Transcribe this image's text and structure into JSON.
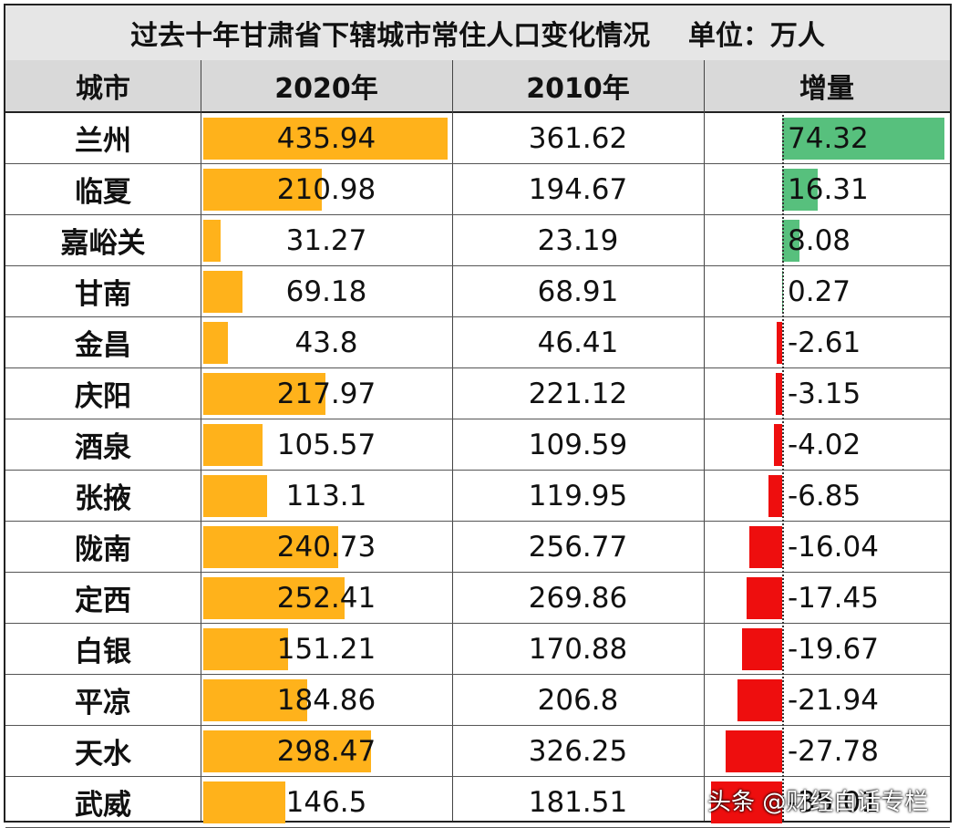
{
  "title": "过去十年甘肃省下辖城市常住人口变化情况    单位：万人",
  "chart_data": {
    "type": "table",
    "columns": [
      "城市",
      "2020年",
      "2010年",
      "增量"
    ],
    "rows": [
      {
        "city": "兰州",
        "y2020": "435.94",
        "y2010": "361.62",
        "inc": "74.32"
      },
      {
        "city": "临夏",
        "y2020": "210.98",
        "y2010": "194.67",
        "inc": "16.31"
      },
      {
        "city": "嘉峪关",
        "y2020": "31.27",
        "y2010": "23.19",
        "inc": "8.08"
      },
      {
        "city": "甘南",
        "y2020": "69.18",
        "y2010": "68.91",
        "inc": "0.27"
      },
      {
        "city": "金昌",
        "y2020": "43.8",
        "y2010": "46.41",
        "inc": "-2.61"
      },
      {
        "city": "庆阳",
        "y2020": "217.97",
        "y2010": "221.12",
        "inc": "-3.15"
      },
      {
        "city": "酒泉",
        "y2020": "105.57",
        "y2010": "109.59",
        "inc": "-4.02"
      },
      {
        "city": "张掖",
        "y2020": "113.1",
        "y2010": "119.95",
        "inc": "-6.85"
      },
      {
        "city": "陇南",
        "y2020": "240.73",
        "y2010": "256.77",
        "inc": "-16.04"
      },
      {
        "city": "定西",
        "y2020": "252.41",
        "y2010": "269.86",
        "inc": "-17.45"
      },
      {
        "city": "白银",
        "y2020": "151.21",
        "y2010": "170.88",
        "inc": "-19.67"
      },
      {
        "city": "平凉",
        "y2020": "184.86",
        "y2010": "206.8",
        "inc": "-21.94"
      },
      {
        "city": "天水",
        "y2020": "298.47",
        "y2010": "326.25",
        "inc": "-27.78"
      },
      {
        "city": "武威",
        "y2020": "146.5",
        "y2010": "181.51",
        "inc": "-35.01"
      }
    ]
  },
  "colors": {
    "pop_bar": "#ffb21b",
    "pos_bar": "#57c07d",
    "neg_bar": "#ee0e0e"
  },
  "watermark": "头条 @财经白话专栏"
}
